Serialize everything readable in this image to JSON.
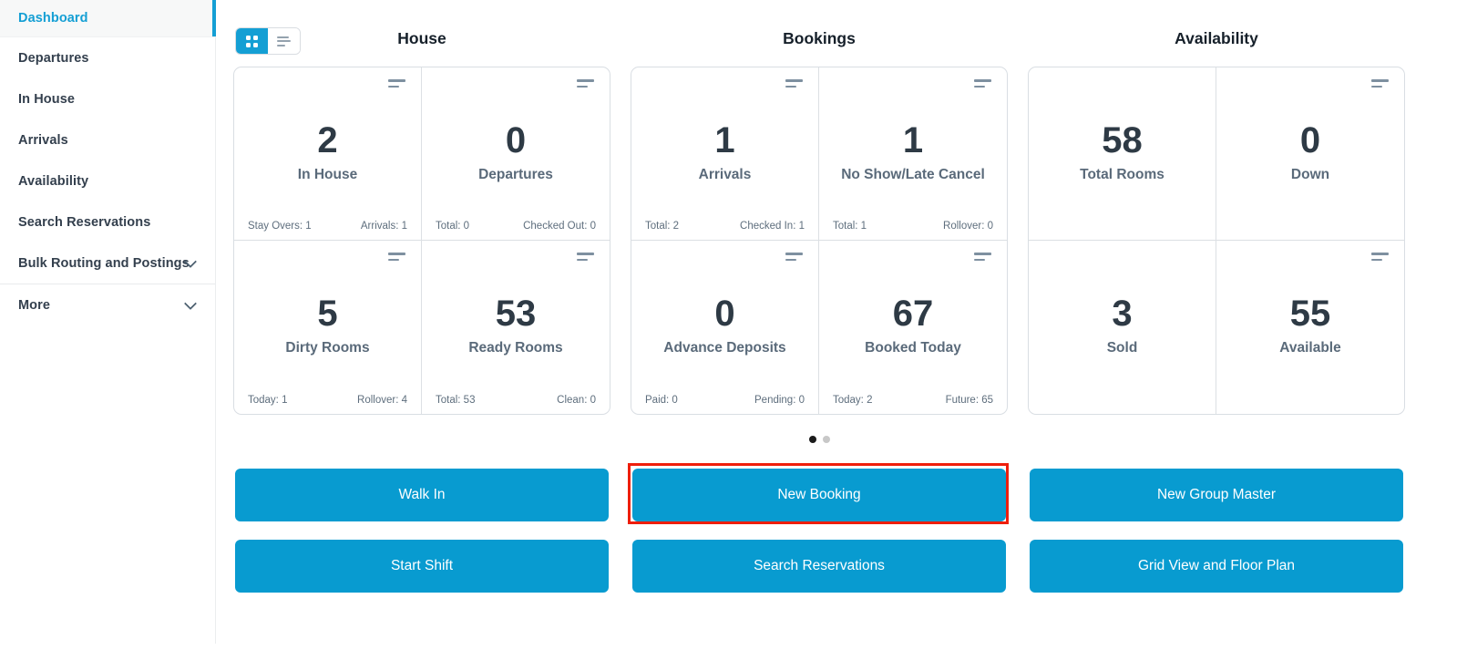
{
  "colors": {
    "accent": "#089bd0",
    "active_nav": "#149fd4",
    "annotation_red": "#ee1e0c",
    "dot_active": "#1b1b1b",
    "dot_inactive": "#c8c8c8"
  },
  "icons": {
    "grid_view": "grid-view-icon",
    "list_view": "list-view-icon",
    "card_menu": "stat-filter-icon",
    "nav_expand": "chevron-down-icon"
  },
  "sidebar": {
    "items": [
      {
        "label": "Dashboard",
        "active": true
      },
      {
        "label": "Departures"
      },
      {
        "label": "In House"
      },
      {
        "label": "Arrivals"
      },
      {
        "label": "Availability"
      },
      {
        "label": "Search Reservations"
      },
      {
        "label": "Bulk Routing and Postings",
        "chevron": true
      },
      {
        "label": "More",
        "chevron": true,
        "divider_above": true
      }
    ]
  },
  "view_toggle": {
    "active": "grid",
    "options": [
      "grid",
      "list"
    ]
  },
  "carousel": {
    "pages": 2,
    "active_page": 1
  },
  "groups": [
    {
      "title": "House",
      "cells": [
        {
          "value": "2",
          "label": "In House",
          "icon": true,
          "footer_left": "Stay Overs: 1",
          "footer_right": "Arrivals: 1"
        },
        {
          "value": "0",
          "label": "Departures",
          "icon": true,
          "footer_left": "Total: 0",
          "footer_right": "Checked Out: 0"
        },
        {
          "value": "5",
          "label": "Dirty Rooms",
          "icon": true,
          "footer_left": "Today: 1",
          "footer_right": "Rollover: 4"
        },
        {
          "value": "53",
          "label": "Ready Rooms",
          "icon": true,
          "footer_left": "Total: 53",
          "footer_right": "Clean: 0"
        }
      ]
    },
    {
      "title": "Bookings",
      "cells": [
        {
          "value": "1",
          "label": "Arrivals",
          "icon": true,
          "footer_left": "Total: 2",
          "footer_right": "Checked In: 1"
        },
        {
          "value": "1",
          "label": "No Show/Late Cancel",
          "icon": true,
          "footer_left": "Total: 1",
          "footer_right": "Rollover: 0"
        },
        {
          "value": "0",
          "label": "Advance Deposits",
          "icon": true,
          "footer_left": "Paid: 0",
          "footer_right": "Pending: 0"
        },
        {
          "value": "67",
          "label": "Booked Today",
          "icon": true,
          "footer_left": "Today: 2",
          "footer_right": "Future: 65"
        }
      ]
    },
    {
      "title": "Availability",
      "cells": [
        {
          "value": "58",
          "label": "Total Rooms",
          "icon": false
        },
        {
          "value": "0",
          "label": "Down",
          "icon": true
        },
        {
          "value": "3",
          "label": "Sold",
          "icon": false
        },
        {
          "value": "55",
          "label": "Available",
          "icon": true
        }
      ]
    }
  ],
  "action_buttons": {
    "row1": [
      {
        "label": "Walk In"
      },
      {
        "label": "New Booking",
        "highlighted": true
      },
      {
        "label": "New Group Master"
      }
    ],
    "row2": [
      {
        "label": "Start Shift"
      },
      {
        "label": "Search Reservations"
      },
      {
        "label": "Grid View and Floor Plan"
      }
    ]
  }
}
